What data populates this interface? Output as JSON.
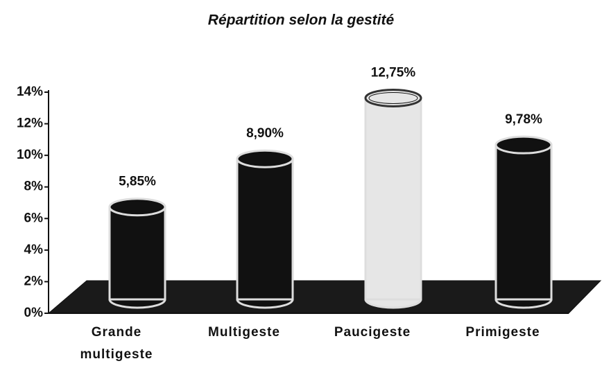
{
  "chart_data": {
    "type": "bar",
    "title": "Répartition selon la gestité",
    "categories": [
      "Grande multigeste",
      "Multigeste",
      "Paucigeste",
      "Primigeste"
    ],
    "values": [
      5.85,
      8.9,
      12.75,
      9.78
    ],
    "value_labels": [
      "5,85%",
      "8,90%",
      "12,75%",
      "9,78%"
    ],
    "colors": [
      "#111111",
      "#111111",
      "#e6e6e6",
      "#111111"
    ],
    "ylim": [
      0,
      14
    ],
    "yticks": [
      {
        "value": 0,
        "label": "0%"
      },
      {
        "value": 2,
        "label": "2%"
      },
      {
        "value": 4,
        "label": "4%"
      },
      {
        "value": 6,
        "label": "6%"
      },
      {
        "value": 8,
        "label": "8%"
      },
      {
        "value": 10,
        "label": "10%"
      },
      {
        "value": 12,
        "label": "12%"
      },
      {
        "value": 14,
        "label": "14%"
      }
    ]
  }
}
